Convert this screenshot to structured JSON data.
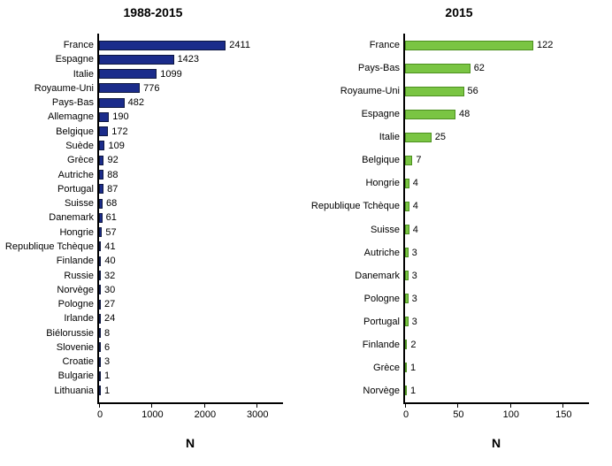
{
  "panels": [
    {
      "id": "left",
      "title": "1988-2015",
      "type": "bar",
      "orientation": "horizontal",
      "bar_color": "#1b2c8b",
      "bar_border_color": "#0d163f",
      "value_fontsize": 11,
      "label_fontsize": 11,
      "title_fontsize": 14,
      "xaxis": {
        "title": "N",
        "min": 0,
        "max": 3500,
        "ticks": [
          0,
          1000,
          2000,
          3000
        ],
        "tick_length": 6
      },
      "categories": [
        "France",
        "Espagne",
        "Italie",
        "Royaume-Uni",
        "Pays-Bas",
        "Allemagne",
        "Belgique",
        "Suède",
        "Grèce",
        "Autriche",
        "Portugal",
        "Suisse",
        "Danemark",
        "Hongrie",
        "Republique Tchèque",
        "Finlande",
        "Russie",
        "Norvège",
        "Pologne",
        "Irlande",
        "Biélorussie",
        "Slovenie",
        "Croatie",
        "Bulgarie",
        "Lithuania"
      ],
      "values": [
        2411,
        1423,
        1099,
        776,
        482,
        190,
        172,
        109,
        92,
        88,
        87,
        68,
        61,
        57,
        41,
        40,
        32,
        30,
        27,
        24,
        8,
        6,
        3,
        1,
        1
      ]
    },
    {
      "id": "right",
      "title": "2015",
      "type": "bar",
      "orientation": "horizontal",
      "bar_color": "#7ac543",
      "bar_border_color": "#4c8f1f",
      "value_fontsize": 11,
      "label_fontsize": 11,
      "title_fontsize": 14,
      "xaxis": {
        "title": "N",
        "min": 0,
        "max": 175,
        "ticks": [
          0,
          50,
          100,
          150
        ],
        "tick_length": 6
      },
      "categories": [
        "France",
        "Pays-Bas",
        "Royaume-Uni",
        "Espagne",
        "Italie",
        "Belgique",
        "Hongrie",
        "Republique Tchèque",
        "Suisse",
        "Autriche",
        "Danemark",
        "Pologne",
        "Portugal",
        "Finlande",
        "Grèce",
        "Norvège"
      ],
      "values": [
        122,
        62,
        56,
        48,
        25,
        7,
        4,
        4,
        4,
        3,
        3,
        3,
        3,
        2,
        1,
        1
      ]
    }
  ],
  "background_color": "#ffffff",
  "axis_color": "#000000",
  "text_color": "#000000"
}
